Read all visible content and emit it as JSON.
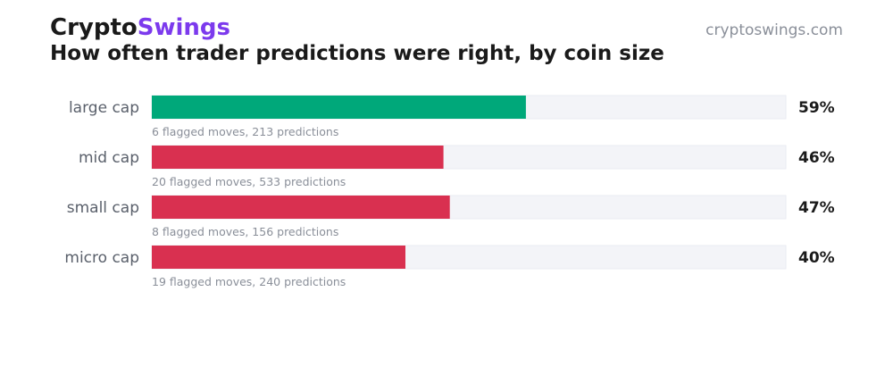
{
  "header": {
    "brand_part1": "Crypto",
    "brand_part2": "Swings",
    "site": "cryptoswings.com",
    "title": "How often trader predictions were right, by coin size"
  },
  "colors": {
    "brand_accent": "#7c3aed",
    "above_half": "#00a87a",
    "below_half": "#d93050",
    "track": "#f3f4f8"
  },
  "chart_data": {
    "type": "bar",
    "orientation": "horizontal",
    "categories": [
      "large cap",
      "mid cap",
      "small cap",
      "micro cap"
    ],
    "values": [
      59,
      46,
      47,
      40
    ],
    "value_labels": [
      "59%",
      "46%",
      "47%",
      "40%"
    ],
    "notes": [
      "6 flagged moves, 213 predictions",
      "20 flagged moves, 533 predictions",
      "8 flagged moves, 156 predictions",
      "19 flagged moves, 240 predictions"
    ],
    "xlim": [
      0,
      100
    ],
    "title": "How often trader predictions were right, by coin size",
    "grid": false,
    "legend": "none"
  }
}
